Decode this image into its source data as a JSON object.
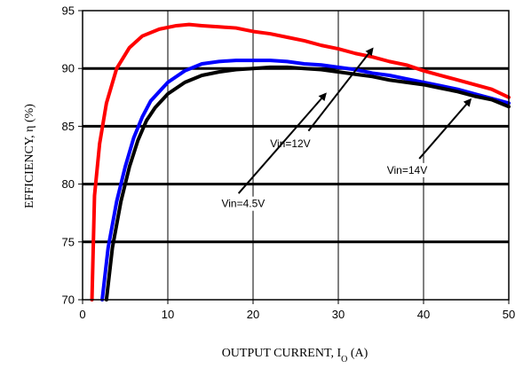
{
  "chart_data": {
    "type": "line",
    "title": "",
    "xlabel": "OUTPUT CURRENT, I",
    "xlabel_subscript": "O",
    "xlabel_unit": " (A)",
    "ylabel": "EFFICIENCY, η  (%)",
    "xlim": [
      0,
      50
    ],
    "ylim": [
      70,
      95
    ],
    "xticks": [
      0,
      10,
      20,
      30,
      40,
      50
    ],
    "yticks": [
      70,
      75,
      80,
      85,
      90,
      95
    ],
    "grid": {
      "vertical": true,
      "horizontal": true
    },
    "series": [
      {
        "name": "Vin=12V",
        "color": "#ff0000",
        "points": [
          [
            1.1,
            70.0
          ],
          [
            1.4,
            79.0
          ],
          [
            2.0,
            83.5
          ],
          [
            2.8,
            87.0
          ],
          [
            4.0,
            90.0
          ],
          [
            5.5,
            91.8
          ],
          [
            7.0,
            92.8
          ],
          [
            9.0,
            93.4
          ],
          [
            11.0,
            93.7
          ],
          [
            12.5,
            93.8
          ],
          [
            14.0,
            93.7
          ],
          [
            16.0,
            93.6
          ],
          [
            18.0,
            93.5
          ],
          [
            20.0,
            93.2
          ],
          [
            22.0,
            93.0
          ],
          [
            24.0,
            92.7
          ],
          [
            26.0,
            92.4
          ],
          [
            28.0,
            92.0
          ],
          [
            30.0,
            91.7
          ],
          [
            32.0,
            91.3
          ],
          [
            34.0,
            91.0
          ],
          [
            36.0,
            90.6
          ],
          [
            38.0,
            90.3
          ],
          [
            40.0,
            89.8
          ],
          [
            42.0,
            89.4
          ],
          [
            44.0,
            89.0
          ],
          [
            46.0,
            88.6
          ],
          [
            48.0,
            88.2
          ],
          [
            50.0,
            87.5
          ]
        ]
      },
      {
        "name": "Vin=4.5V",
        "color": "#0000ff",
        "points": [
          [
            2.3,
            70.0
          ],
          [
            3.0,
            74.5
          ],
          [
            4.0,
            78.5
          ],
          [
            5.0,
            81.5
          ],
          [
            6.0,
            84.0
          ],
          [
            7.0,
            85.8
          ],
          [
            8.0,
            87.2
          ],
          [
            10.0,
            88.8
          ],
          [
            12.0,
            89.8
          ],
          [
            14.0,
            90.4
          ],
          [
            16.0,
            90.6
          ],
          [
            18.0,
            90.7
          ],
          [
            20.0,
            90.7
          ],
          [
            22.0,
            90.7
          ],
          [
            24.0,
            90.6
          ],
          [
            26.0,
            90.4
          ],
          [
            28.0,
            90.3
          ],
          [
            30.0,
            90.1
          ],
          [
            32.0,
            89.9
          ],
          [
            34.0,
            89.6
          ],
          [
            36.0,
            89.4
          ],
          [
            38.0,
            89.1
          ],
          [
            40.0,
            88.8
          ],
          [
            42.0,
            88.5
          ],
          [
            44.0,
            88.2
          ],
          [
            46.0,
            87.8
          ],
          [
            48.0,
            87.4
          ],
          [
            50.0,
            87.0
          ]
        ]
      },
      {
        "name": "Vin=14V",
        "color": "#000000",
        "points": [
          [
            2.8,
            70.0
          ],
          [
            3.5,
            74.5
          ],
          [
            4.5,
            78.5
          ],
          [
            5.5,
            81.5
          ],
          [
            6.5,
            83.8
          ],
          [
            7.5,
            85.5
          ],
          [
            8.5,
            86.6
          ],
          [
            10.0,
            87.8
          ],
          [
            12.0,
            88.8
          ],
          [
            14.0,
            89.4
          ],
          [
            16.0,
            89.7
          ],
          [
            18.0,
            89.9
          ],
          [
            20.0,
            90.0
          ],
          [
            22.0,
            90.1
          ],
          [
            24.0,
            90.1
          ],
          [
            26.0,
            90.0
          ],
          [
            28.0,
            89.9
          ],
          [
            30.0,
            89.7
          ],
          [
            32.0,
            89.5
          ],
          [
            34.0,
            89.3
          ],
          [
            36.0,
            89.0
          ],
          [
            38.0,
            88.8
          ],
          [
            40.0,
            88.6
          ],
          [
            42.0,
            88.3
          ],
          [
            44.0,
            88.0
          ],
          [
            46.0,
            87.6
          ],
          [
            48.0,
            87.3
          ],
          [
            50.0,
            86.7
          ]
        ]
      }
    ],
    "annotations": [
      {
        "text": "Vin=12V",
        "text_xy": [
          22.0,
          83.2
        ],
        "arrow_from": [
          26.5,
          84.6
        ],
        "arrow_to": [
          34.0,
          91.7
        ]
      },
      {
        "text": "Vin=4.5V",
        "text_xy": [
          16.3,
          78.0
        ],
        "arrow_from": [
          18.3,
          79.2
        ],
        "arrow_to": [
          28.5,
          87.8
        ]
      },
      {
        "text": "Vin=14V",
        "text_xy": [
          35.7,
          80.9
        ],
        "arrow_from": [
          39.5,
          82.2
        ],
        "arrow_to": [
          45.5,
          87.3
        ]
      }
    ]
  }
}
